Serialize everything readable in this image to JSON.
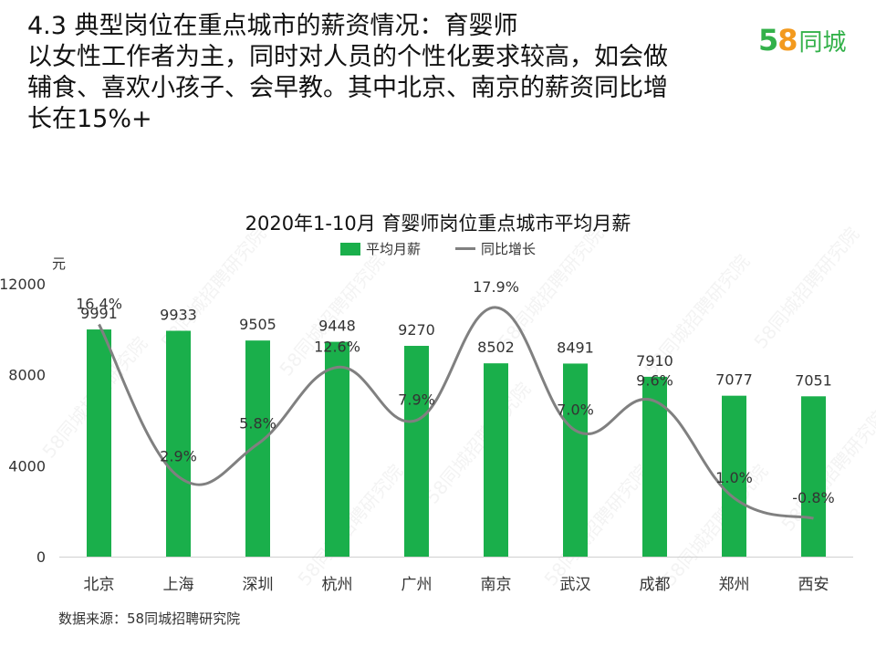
{
  "headline": {
    "lines": [
      "4.3  典型岗位在重点城市的薪资情况：育婴师",
      "以女性工作者为主，同时对人员的个性化要求较高，如会做",
      "辅食、喜欢小孩子、会早教。其中北京、南京的薪资同比增",
      "长在15%+"
    ]
  },
  "logo": {
    "number": "58",
    "text": "同城"
  },
  "source": "数据来源：58同城招聘研究院",
  "watermark": "58同城招聘研究院",
  "colors": {
    "bar": "#1aaf4b",
    "line": "#808080"
  },
  "chart_data": {
    "type": "bar",
    "title": "2020年1-10月  育婴师岗位重点城市平均月薪",
    "ylabel": "元",
    "ylim": [
      0,
      12000
    ],
    "yticks": [
      "0",
      "4000",
      "8000",
      "12000"
    ],
    "grid": false,
    "legend_position": "top",
    "categories": [
      "北京",
      "上海",
      "深圳",
      "杭州",
      "广州",
      "南京",
      "武汉",
      "成都",
      "郑州",
      "西安"
    ],
    "series": [
      {
        "name": "平均月薪",
        "kind": "bar",
        "values": [
          9991,
          9933,
          9505,
          9448,
          9270,
          8502,
          8491,
          7910,
          7077,
          7051
        ],
        "labels": [
          "9991",
          "9933",
          "9505",
          "9448",
          "9270",
          "8502",
          "8491",
          "7910",
          "7077",
          "7051"
        ]
      },
      {
        "name": "同比增长",
        "kind": "line",
        "smooth": true,
        "values": [
          16.4,
          2.9,
          5.8,
          12.6,
          7.9,
          17.9,
          7.0,
          9.6,
          1.0,
          -0.8
        ],
        "labels": [
          "16.4%",
          "2.9%",
          "5.8%",
          "12.6%",
          "7.9%",
          "17.9%",
          "7.0%",
          "9.6%",
          "1.0%",
          "-0.8%"
        ],
        "ylim": [
          -5,
          20
        ]
      }
    ]
  }
}
